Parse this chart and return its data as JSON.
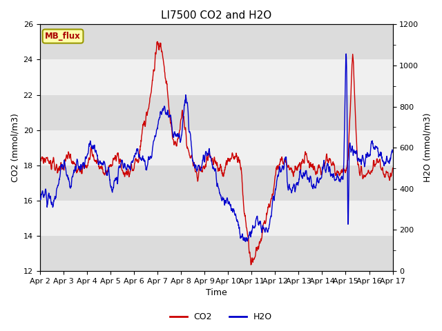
{
  "title": "LI7500 CO2 and H2O",
  "xlabel": "Time",
  "ylabel_left": "CO2 (mmol/m3)",
  "ylabel_right": "H2O (mmol/m3)",
  "annotation": "MB_flux",
  "co2_color": "#cc0000",
  "h2o_color": "#0000cc",
  "bg_dark": "#dcdcdc",
  "bg_light": "#f0f0f0",
  "ylim_left": [
    12,
    26
  ],
  "ylim_right": [
    0,
    1200
  ],
  "yticks_left": [
    12,
    14,
    16,
    18,
    20,
    22,
    24,
    26
  ],
  "yticks_right": [
    0,
    200,
    400,
    600,
    800,
    1000,
    1200
  ],
  "xtick_labels": [
    "Apr 2",
    "Apr 3",
    "Apr 4",
    "Apr 5",
    "Apr 6",
    "Apr 7",
    "Apr 8",
    "Apr 9",
    "Apr 10",
    "Apr 11",
    "Apr 12",
    "Apr 13",
    "Apr 14",
    "Apr 15",
    "Apr 16",
    "Apr 17"
  ],
  "num_points": 1440,
  "seed": 42
}
